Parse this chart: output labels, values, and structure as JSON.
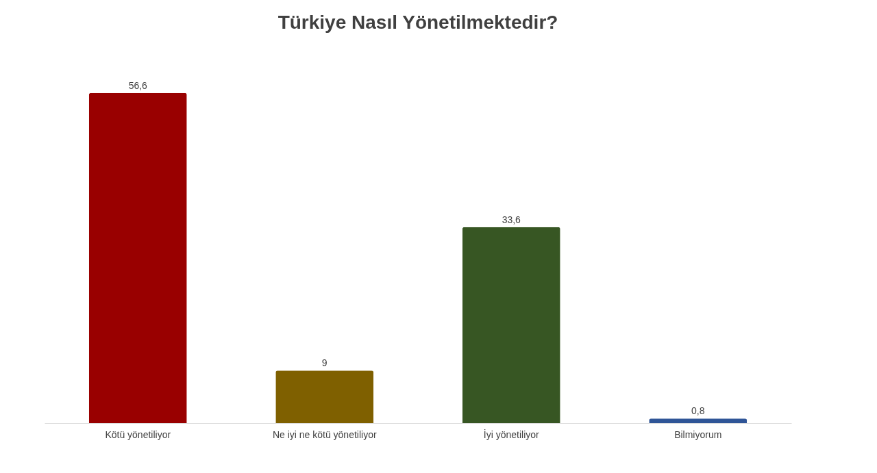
{
  "chart_data": {
    "type": "bar",
    "title": "Türkiye Nasıl Yönetilmektedir?",
    "categories": [
      "Kötü yönetiliyor",
      "Ne iyi ne kötü yönetiliyor",
      "İyi yönetiliyor",
      "Bilmiyorum"
    ],
    "values": [
      56.6,
      9,
      33.6,
      0.8
    ],
    "value_labels": [
      "56,6",
      "9",
      "33,6",
      "0,8"
    ],
    "colors": [
      "#990000",
      "#7f6000",
      "#375623",
      "#2f5597"
    ],
    "grid": false
  }
}
